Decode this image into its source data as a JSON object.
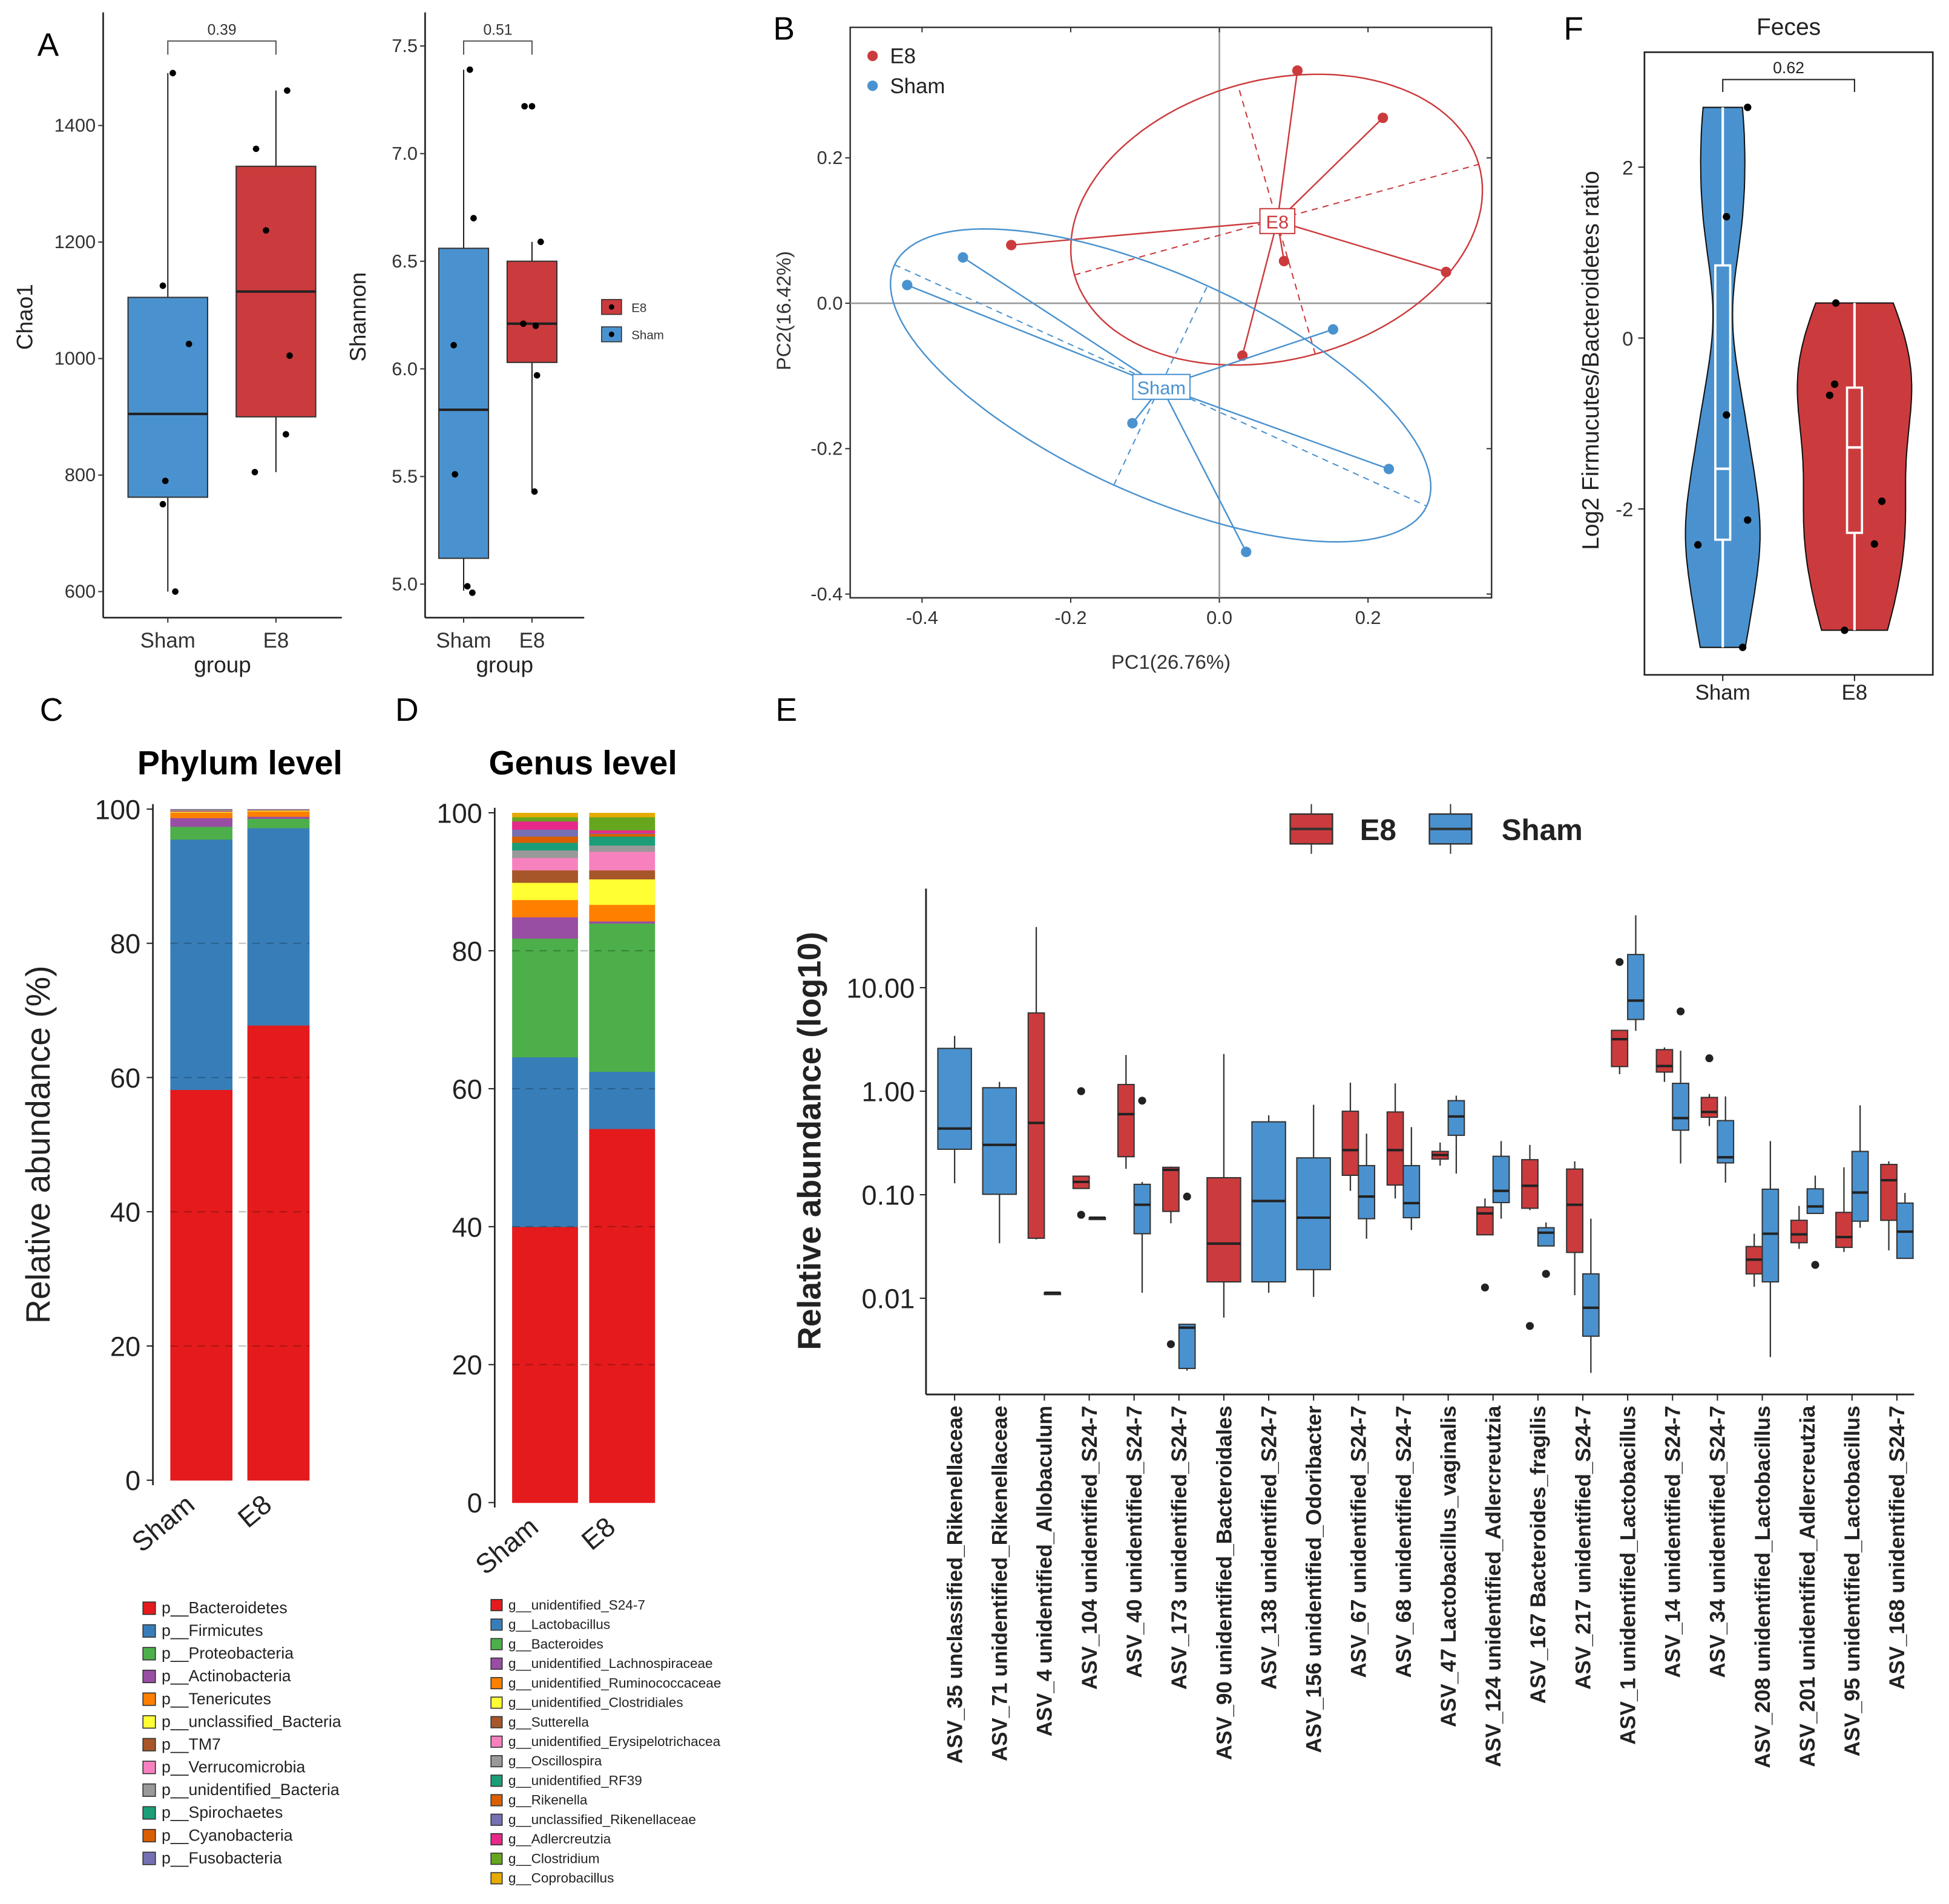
{
  "panel_labels": {
    "A": "A",
    "B": "B",
    "C": "C",
    "D": "D",
    "E": "E",
    "F": "F"
  },
  "colors": {
    "E8": "#CB3B3D",
    "Sham": "#4A92CF"
  },
  "chart_data": [
    {
      "type": "box",
      "panel": "A",
      "ylabel": "Chao1",
      "xlabel": "group",
      "categories": [
        "Sham",
        "E8"
      ],
      "yticks": [
        "600",
        "800",
        "1000",
        "1200",
        "1400"
      ],
      "ylim": [
        550,
        1560
      ],
      "p_value": "0.39",
      "groups": {
        "Sham": {
          "whisker_low": 600,
          "q1": 762,
          "median": 905,
          "q3": 1105,
          "whisker_high": 1490,
          "points": [
            1490,
            1125,
            1025,
            790,
            750,
            600
          ]
        },
        "E8": {
          "whisker_low": 805,
          "q1": 900,
          "median": 1115,
          "q3": 1330,
          "whisker_high": 1460,
          "points": [
            1460,
            1360,
            1220,
            1005,
            870,
            805
          ]
        }
      }
    },
    {
      "type": "box",
      "panel": "A",
      "ylabel": "Shannon",
      "xlabel": "group",
      "categories": [
        "Sham",
        "E8"
      ],
      "yticks": [
        "5.0",
        "5.5",
        "6.0",
        "6.5",
        "7.0",
        "7.5"
      ],
      "ylim": [
        4.85,
        7.65
      ],
      "p_value": "0.51",
      "legend": [
        "E8",
        "Sham"
      ],
      "groups": {
        "Sham": {
          "whisker_low": 4.97,
          "q1": 5.12,
          "median": 5.81,
          "q3": 6.56,
          "whisker_high": 7.39,
          "points": [
            7.39,
            6.7,
            6.11,
            5.51,
            4.99,
            4.96
          ]
        },
        "E8": {
          "whisker_low": 5.43,
          "q1": 6.03,
          "median": 6.21,
          "q3": 6.5,
          "whisker_high": 6.59,
          "points": [
            7.22,
            7.22,
            6.59,
            6.21,
            6.2,
            5.97,
            5.43
          ]
        }
      }
    },
    {
      "type": "scatter",
      "panel": "B",
      "xlabel": "PC1(26.76%)",
      "ylabel": "PC2(16.42%)",
      "xticks": [
        "-0.4",
        "-0.2",
        "0.0",
        "0.2"
      ],
      "yticks": [
        "-0.4",
        "-0.2",
        "0.0",
        "0.2"
      ],
      "xlim": [
        -0.48,
        0.36
      ],
      "ylim": [
        -0.41,
        0.38
      ],
      "legend": [
        "E8",
        "Sham"
      ],
      "legend_position": "top-left",
      "series": [
        {
          "name": "E8",
          "x": [
            -0.28,
            0.105,
            0.22,
            0.305,
            0.087,
            0.031
          ],
          "y": [
            0.08,
            0.32,
            0.255,
            0.043,
            0.058,
            -0.072
          ],
          "centroid": [
            0.078,
            0.113
          ],
          "ellipse": {
            "center": [
              0.077,
              0.115
            ],
            "major_end": [
              0.349,
              0.191
            ],
            "minor_end": [
              0.025,
              0.3
            ]
          }
        },
        {
          "name": "Sham",
          "x": [
            -0.42,
            -0.345,
            -0.117,
            0.036,
            0.153,
            0.228
          ],
          "y": [
            0.025,
            0.063,
            -0.165,
            -0.342,
            -0.036,
            -0.228
          ],
          "centroid": [
            -0.078,
            -0.115
          ],
          "ellipse": {
            "center": [
              -0.079,
              -0.113
            ],
            "major_end": [
              0.279,
              -0.279
            ],
            "minor_end": [
              -0.016,
              0.024
            ]
          }
        }
      ]
    },
    {
      "type": "bar",
      "stacked": true,
      "panel": "C",
      "title": "Phylum level",
      "ylabel": "Relative abundance (%)",
      "categories": [
        "Sham",
        "E8"
      ],
      "yticks": [
        "0",
        "20",
        "40",
        "60",
        "80",
        "100"
      ],
      "ylim": [
        0,
        100
      ],
      "series": [
        {
          "name": "p__Bacteroidetes",
          "color": "#E41A1C",
          "values": [
            58.2,
            67.8
          ]
        },
        {
          "name": "p__Firmicutes",
          "color": "#377EB8",
          "values": [
            37.3,
            29.4
          ]
        },
        {
          "name": "p__Proteobacteria",
          "color": "#4DAF4A",
          "values": [
            1.9,
            1.4
          ]
        },
        {
          "name": "p__Actinobacteria",
          "color": "#984EA3",
          "values": [
            1.3,
            0.3
          ]
        },
        {
          "name": "p__Tenericutes",
          "color": "#FF7F00",
          "values": [
            0.8,
            0.8
          ]
        },
        {
          "name": "p__unclassified_Bacteria",
          "color": "#FFFF33",
          "values": [
            0.1,
            0.1
          ]
        },
        {
          "name": "p__TM7",
          "color": "#A65628",
          "values": [
            0.1,
            0.05
          ]
        },
        {
          "name": "p__Verrucomicrobia",
          "color": "#F781BF",
          "values": [
            0.1,
            0.05
          ]
        },
        {
          "name": "p__unidentified_Bacteria",
          "color": "#999999",
          "values": [
            0.05,
            0.02
          ]
        },
        {
          "name": "p__Spirochaetes",
          "color": "#1B9E77",
          "values": [
            0.05,
            0.02
          ]
        },
        {
          "name": "p__Cyanobacteria",
          "color": "#D95F02",
          "values": [
            0.05,
            0.03
          ]
        },
        {
          "name": "p__Fusobacteria",
          "color": "#7570B3",
          "values": [
            0.05,
            0.03
          ]
        }
      ]
    },
    {
      "type": "bar",
      "stacked": true,
      "panel": "D",
      "title": "Genus level",
      "categories": [
        "Sham",
        "E8"
      ],
      "yticks": [
        "0",
        "20",
        "40",
        "60",
        "80",
        "100"
      ],
      "ylim": [
        0,
        100
      ],
      "series": [
        {
          "name": "g__unidentified_S24-7",
          "color": "#E41A1C",
          "values": [
            40.0,
            54.2
          ]
        },
        {
          "name": "g__Lactobacillus",
          "color": "#377EB8",
          "values": [
            24.6,
            8.3
          ]
        },
        {
          "name": "g__Bacteroides",
          "color": "#4DAF4A",
          "values": [
            17.2,
            21.5
          ]
        },
        {
          "name": "g__unidentified_Lachnospiraceae",
          "color": "#984EA3",
          "values": [
            3.1,
            0.3
          ]
        },
        {
          "name": "g__unidentified_Ruminococcaceae",
          "color": "#FF7F00",
          "values": [
            2.5,
            2.4
          ]
        },
        {
          "name": "g__unidentified_Clostridiales",
          "color": "#FFFF33",
          "values": [
            2.5,
            3.7
          ]
        },
        {
          "name": "g__Sutterella",
          "color": "#A65628",
          "values": [
            1.8,
            1.3
          ]
        },
        {
          "name": "g__unidentified_Erysipelotrichacea",
          "color": "#F781BF",
          "values": [
            1.8,
            2.7
          ]
        },
        {
          "name": "g__Oscillospira",
          "color": "#999999",
          "values": [
            1.1,
            0.9
          ]
        },
        {
          "name": "g__unidentified_RF39",
          "color": "#1B9E77",
          "values": [
            1.1,
            1.3
          ]
        },
        {
          "name": "g__Rikenella",
          "color": "#D95F02",
          "values": [
            0.9,
            0.4
          ]
        },
        {
          "name": "g__unclassified_Rikenellaceae",
          "color": "#7570B3",
          "values": [
            1.0,
            0.1
          ]
        },
        {
          "name": "g__Adlercreutzia",
          "color": "#E7298A",
          "values": [
            1.2,
            0.4
          ]
        },
        {
          "name": "g__Clostridium",
          "color": "#66A61E",
          "values": [
            0.6,
            1.9
          ]
        },
        {
          "name": "g__Coprobacillus",
          "color": "#E6AB02",
          "values": [
            0.6,
            0.6
          ]
        }
      ]
    },
    {
      "type": "box",
      "panel": "E",
      "ylabel": "Relative abundance (log10)",
      "yscale": "log10",
      "yticks": [
        "10.00",
        "1.00",
        "0.10",
        "0.01"
      ],
      "ylim": [
        0.0012,
        80
      ],
      "legend": [
        "E8",
        "Sham"
      ],
      "legend_position": "top",
      "boxes": [
        {
          "category": "ASV_35 unclassified_Rikenellaceae",
          "E8": null,
          "Sham": [
            0.129,
            0.275,
            0.436,
            2.59,
            3.42
          ]
        },
        {
          "category": "ASV_71 unidentified_Rikenellaceae",
          "E8": null,
          "Sham": [
            0.034,
            0.101,
            0.303,
            1.08,
            1.23
          ]
        },
        {
          "category": "ASV_4 unidentified_Allobaculum",
          "E8": [
            0.037,
            0.038,
            0.494,
            5.7,
            38.5
          ],
          "Sham": [
            0.0113,
            0.0113,
            0.0113,
            0.0113,
            0.0113
          ]
        },
        {
          "category": "ASV_104 unidentified_S24-7",
          "E8": [
            0.115,
            0.115,
            0.133,
            0.151,
            0.151
          ],
          "E8_outliers": [
            1.0,
            0.064
          ],
          "Sham": [
            0.06,
            0.06,
            0.06,
            0.06,
            0.06
          ]
        },
        {
          "category": "ASV_40 unidentified_S24-7",
          "E8": [
            0.178,
            0.233,
            0.6,
            1.16,
            2.24
          ],
          "Sham": [
            0.0113,
            0.042,
            0.08,
            0.126,
            0.133
          ],
          "Sham_outliers": [
            0.81
          ]
        },
        {
          "category": "ASV_173 unidentified_S24-7",
          "E8": [
            0.053,
            0.069,
            0.174,
            0.184,
            0.187
          ],
          "E8_outliers": [
            0.0036
          ],
          "Sham": [
            0.002,
            0.0021,
            0.0052,
            0.0056,
            0.0056
          ],
          "Sham_outliers": [
            0.096
          ]
        },
        {
          "category": "ASV_90 unidentified_Bacteroidales",
          "E8": [
            0.0065,
            0.0144,
            0.0337,
            0.146,
            2.29
          ],
          "Sham": null
        },
        {
          "category": "ASV_138 unidentified_S24-7",
          "E8": null,
          "Sham": [
            0.0113,
            0.0144,
            0.087,
            0.506,
            0.585
          ]
        },
        {
          "category": "ASV_156 unidentified_Odoribacter",
          "E8": null,
          "Sham": [
            0.0103,
            0.0189,
            0.06,
            0.227,
            0.74
          ]
        },
        {
          "category": "ASV_67 unidentified_S24-7",
          "E8": [
            0.109,
            0.154,
            0.27,
            0.64,
            1.21
          ],
          "Sham": [
            0.0376,
            0.0587,
            0.096,
            0.191,
            0.389
          ]
        },
        {
          "category": "ASV_68 unidentified_S24-7",
          "E8": [
            0.092,
            0.124,
            0.27,
            0.63,
            1.19
          ],
          "Sham": [
            0.0455,
            0.06,
            0.083,
            0.191,
            0.45
          ]
        },
        {
          "category": "ASV_47 Lactobacillus_vaginalis",
          "E8": [
            0.191,
            0.221,
            0.242,
            0.262,
            0.319
          ],
          "Sham": [
            0.16,
            0.375,
            0.57,
            0.81,
            0.906
          ]
        },
        {
          "category": "ASV_124 unidentified_Adlercreutzia",
          "E8": [
            0.041,
            0.041,
            0.066,
            0.076,
            0.092
          ],
          "E8_outliers": [
            0.0127
          ],
          "Sham": [
            0.0587,
            0.084,
            0.109,
            0.235,
            0.33
          ]
        },
        {
          "category": "ASV_167 Bacteroides_fragilis",
          "E8": [
            0.071,
            0.074,
            0.122,
            0.218,
            0.303
          ],
          "E8_outliers": [
            0.0054
          ],
          "Sham": [
            0.032,
            0.032,
            0.043,
            0.048,
            0.054
          ],
          "Sham_outliers": [
            0.0172
          ]
        },
        {
          "category": "ASV_217 unidentified_S24-7",
          "E8": [
            0.0107,
            0.0277,
            0.08,
            0.177,
            0.21
          ],
          "Sham": [
            0.0019,
            0.0043,
            0.0081,
            0.0172,
            0.0587
          ]
        },
        {
          "category": "ASV_1 unidentified_Lactobacillus",
          "E8": [
            1.46,
            1.73,
            3.18,
            3.87,
            3.87
          ],
          "E8_outliers": [
            17.7
          ],
          "Sham": [
            3.82,
            4.93,
            7.5,
            20.9,
            50
          ]
        },
        {
          "category": "ASV_14 unidentified_S24-7",
          "E8": [
            1.23,
            1.53,
            1.75,
            2.52,
            2.65
          ],
          "Sham": [
            0.2,
            0.42,
            0.55,
            1.19,
            2.46
          ],
          "Sham_outliers": [
            5.9
          ]
        },
        {
          "category": "ASV_34 unidentified_S24-7",
          "E8": [
            0.46,
            0.56,
            0.63,
            0.87,
            0.94
          ],
          "E8_outliers": [
            2.08
          ],
          "Sham": [
            0.131,
            0.203,
            0.23,
            0.52,
            0.89
          ]
        },
        {
          "category": "ASV_208 unidentified_Lactobacillus",
          "E8": [
            0.0129,
            0.0172,
            0.0236,
            0.0316,
            0.042
          ],
          "Sham": [
            0.0027,
            0.0144,
            0.042,
            0.113,
            0.33
          ]
        },
        {
          "category": "ASV_201 unidentified_Adlercreutzia",
          "E8": [
            0.03,
            0.0344,
            0.0414,
            0.0566,
            0.078
          ],
          "Sham": [
            0.066,
            0.066,
            0.077,
            0.114,
            0.153
          ],
          "Sham_outliers": [
            0.021
          ]
        },
        {
          "category": "ASV_95 unidentified_Lactobacillus",
          "E8": [
            0.028,
            0.031,
            0.039,
            0.0675,
            0.184
          ],
          "Sham": [
            0.048,
            0.0555,
            0.105,
            0.262,
            0.73
          ]
        },
        {
          "category": "ASV_168 unidentified_S24-7",
          "E8": [
            0.029,
            0.0566,
            0.138,
            0.196,
            0.21
          ],
          "Sham": [
            0.024,
            0.0243,
            0.044,
            0.083,
            0.104
          ]
        }
      ]
    },
    {
      "type": "violin",
      "panel": "F",
      "title": "Feces",
      "ylabel": "Log2 Firmucutes/Bacteroidetes ratio",
      "categories": [
        "Sham",
        "E8"
      ],
      "yticks": [
        "-2",
        "0",
        "2"
      ],
      "ylim": [
        -3.95,
        3.35
      ],
      "p_value": "0.62",
      "groups": {
        "Sham": {
          "whisker_low": -3.62,
          "q1": -2.36,
          "median": -1.53,
          "q3": 0.85,
          "whisker_high": 2.7,
          "points": [
            2.7,
            1.42,
            -0.9,
            -2.13,
            -2.42,
            -3.62
          ]
        },
        "E8": {
          "whisker_low": -3.42,
          "q1": -2.28,
          "median": -1.28,
          "q3": -0.58,
          "whisker_high": 0.41,
          "points": [
            0.41,
            -0.54,
            -0.67,
            -1.91,
            -2.41,
            -3.42
          ]
        }
      }
    }
  ]
}
